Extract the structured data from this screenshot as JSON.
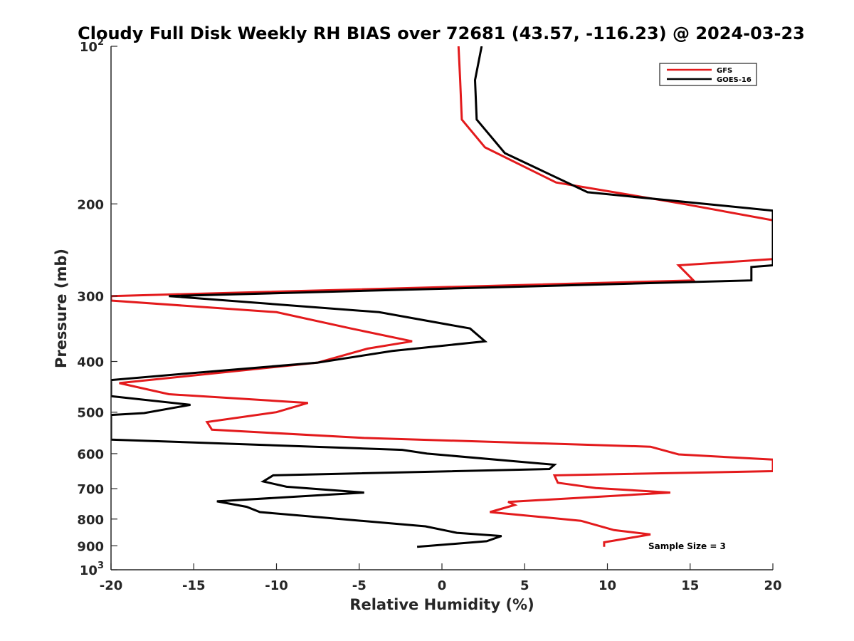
{
  "chart_data": {
    "type": "line",
    "title": "Cloudy Full Disk Weekly RH BIAS over 72681 (43.57, -116.23) @ 2024-03-23",
    "xlabel": "Relative Humidity (%)",
    "ylabel": "Pressure (mb)",
    "xlim": [
      -20,
      20
    ],
    "ylim": [
      100,
      1000
    ],
    "y_scale": "log",
    "y_reversed": true,
    "x_ticks": [
      "-20",
      "-15",
      "-10",
      "-5",
      "0",
      "5",
      "10",
      "15",
      "20"
    ],
    "y_ticks": [
      {
        "value": 100,
        "base": "10",
        "exp": "2"
      },
      {
        "value": 200,
        "label": "200"
      },
      {
        "value": 300,
        "label": "300"
      },
      {
        "value": 400,
        "label": "400"
      },
      {
        "value": 500,
        "label": "500"
      },
      {
        "value": 600,
        "label": "600"
      },
      {
        "value": 700,
        "label": "700"
      },
      {
        "value": 800,
        "label": "800"
      },
      {
        "value": 900,
        "label": "900"
      },
      {
        "value": 1000,
        "base": "10",
        "exp": "3"
      }
    ],
    "legend_position": "top-right",
    "annotation": "Sample Size = 3",
    "series": [
      {
        "name": "GFS",
        "color": "#e31a1c",
        "points": [
          [
            1.0,
            100
          ],
          [
            1.1,
            116
          ],
          [
            1.2,
            138
          ],
          [
            2.6,
            156
          ],
          [
            6.9,
            182
          ],
          [
            14.6,
            200
          ],
          [
            20.0,
            215
          ],
          [
            20.0,
            255
          ],
          [
            14.3,
            262
          ],
          [
            15.2,
            280
          ],
          [
            -20.0,
            300
          ],
          [
            -20.0,
            306
          ],
          [
            -10.0,
            322
          ],
          [
            -5.5,
            346
          ],
          [
            -1.8,
            366
          ],
          [
            -4.5,
            378
          ],
          [
            -7.5,
            402
          ],
          [
            -19.5,
            440
          ],
          [
            -16.5,
            462
          ],
          [
            -8.1,
            480
          ],
          [
            -10.0,
            500
          ],
          [
            -14.2,
            522
          ],
          [
            -13.9,
            540
          ],
          [
            -4.7,
            560
          ],
          [
            12.6,
            582
          ],
          [
            14.3,
            602
          ],
          [
            20.0,
            616
          ],
          [
            20.0,
            648
          ],
          [
            6.8,
            660
          ],
          [
            7.0,
            682
          ],
          [
            9.3,
            698
          ],
          [
            13.8,
            712
          ],
          [
            4.0,
            742
          ],
          [
            4.4,
            752
          ],
          [
            2.9,
            776
          ],
          [
            8.4,
            806
          ],
          [
            10.4,
            840
          ],
          [
            12.6,
            856
          ],
          [
            9.8,
            886
          ],
          [
            9.8,
            904
          ]
        ]
      },
      {
        "name": "GOES-16",
        "color": "#000000",
        "points": [
          [
            2.4,
            100
          ],
          [
            2.0,
            116
          ],
          [
            2.1,
            138
          ],
          [
            3.8,
            160
          ],
          [
            8.8,
            190
          ],
          [
            20.0,
            206
          ],
          [
            20.0,
            262
          ],
          [
            18.7,
            264
          ],
          [
            18.7,
            280
          ],
          [
            -16.5,
            300
          ],
          [
            -3.8,
            322
          ],
          [
            1.7,
            346
          ],
          [
            2.6,
            366
          ],
          [
            -3.0,
            382
          ],
          [
            -7.5,
            402
          ],
          [
            -15.5,
            422
          ],
          [
            -20.0,
            434
          ],
          [
            -20.0,
            466
          ],
          [
            -15.2,
            484
          ],
          [
            -18.0,
            502
          ],
          [
            -20.0,
            506
          ],
          [
            -20.0,
            564
          ],
          [
            -2.4,
            590
          ],
          [
            -0.9,
            600
          ],
          [
            6.8,
            630
          ],
          [
            6.5,
            642
          ],
          [
            -10.2,
            660
          ],
          [
            -10.8,
            678
          ],
          [
            -9.4,
            694
          ],
          [
            -4.7,
            712
          ],
          [
            -13.6,
            740
          ],
          [
            -11.8,
            758
          ],
          [
            -11.0,
            776
          ],
          [
            -1.0,
            826
          ],
          [
            0.9,
            850
          ],
          [
            3.6,
            862
          ],
          [
            2.7,
            882
          ],
          [
            -1.5,
            904
          ]
        ]
      }
    ]
  }
}
